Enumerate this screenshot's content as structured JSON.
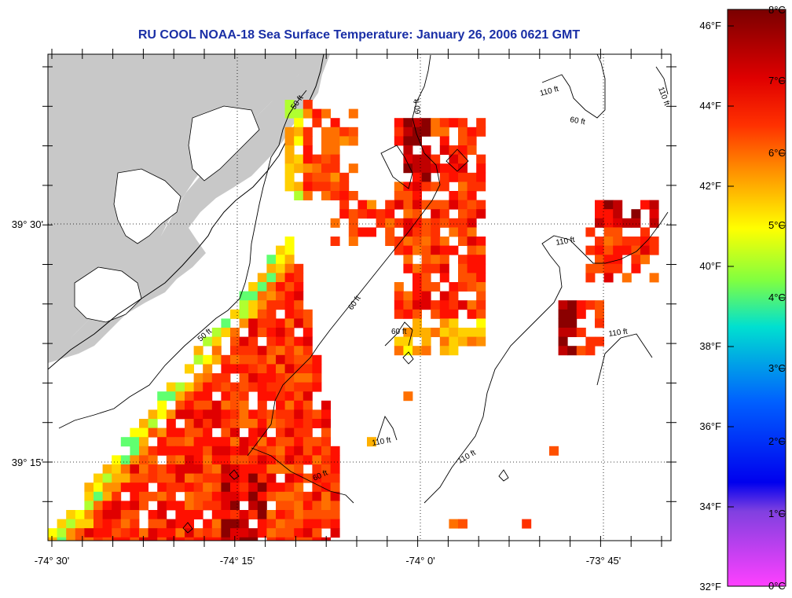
{
  "title": "RU COOL  NOAA-18  Sea Surface Temperature:  January 26, 2006 0621 GMT",
  "axes": {
    "lat_labels": [
      "39° 30'",
      "39° 15'"
    ],
    "lon_labels": [
      "-74° 30'",
      "-74° 15'",
      "-74° 0'",
      "-73° 45'"
    ]
  },
  "contour_labels": [
    "50 ft",
    "60 ft",
    "110 ft"
  ],
  "colorbar": {
    "fahrenheit": [
      "46°F",
      "44°F",
      "42°F",
      "40°F",
      "38°F",
      "36°F",
      "34°F",
      "32°F"
    ],
    "celsius": [
      "8°C",
      "7°C",
      "6°C",
      "5°C",
      "4°C",
      "3°C",
      "2°C",
      "1°C",
      "0°C"
    ],
    "stops": [
      "#8b0000",
      "#ff0000",
      "#ff8c00",
      "#ffff00",
      "#7fff00",
      "#00e5e5",
      "#0040ff",
      "#0000ff",
      "#8a2be2",
      "#ff40ff"
    ]
  },
  "colors": {
    "land": "#c8c8c8",
    "ocean_no_data": "#ffffff",
    "title": "#1a2fa6"
  }
}
